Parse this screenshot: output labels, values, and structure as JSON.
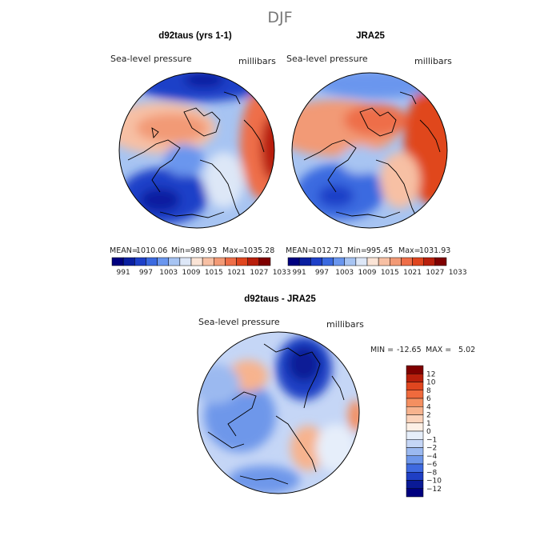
{
  "figure_title": "DJF",
  "chart_data": [
    {
      "type": "heatmap",
      "title": "d92taus (yrs 1-1)",
      "field_label": "Sea-level pressure",
      "units": "millibars",
      "stats": {
        "mean_label": "MEAN=",
        "mean": "1010.06",
        "min_label": "Min=",
        "min": "989.93",
        "max_label": "Max=",
        "max": "1035.28"
      },
      "colorbar": {
        "orientation": "horizontal",
        "levels": [
          "991",
          "997",
          "1003",
          "1009",
          "1015",
          "1021",
          "1027",
          "1033"
        ]
      }
    },
    {
      "type": "heatmap",
      "title": "JRA25",
      "field_label": "Sea-level pressure",
      "units": "millibars",
      "stats": {
        "mean_label": "MEAN=",
        "mean": "1012.71",
        "min_label": "Min=",
        "min": "995.45",
        "max_label": "Max=",
        "max": "1031.93"
      },
      "colorbar": {
        "orientation": "horizontal",
        "levels": [
          "991",
          "997",
          "1003",
          "1009",
          "1015",
          "1021",
          "1027",
          "1033"
        ]
      }
    },
    {
      "type": "heatmap",
      "title": "d92taus - JRA25",
      "field_label": "Sea-level pressure",
      "units": "millibars",
      "stats": {
        "min_label": "MIN =",
        "min": "-12.65",
        "max_label": "MAX =",
        "max": "5.02"
      },
      "colorbar": {
        "orientation": "vertical",
        "levels": [
          "12",
          "10",
          "8",
          "6",
          "4",
          "2",
          "1",
          "0",
          "−1",
          "−2",
          "−4",
          "−6",
          "−8",
          "−10",
          "−12"
        ]
      }
    }
  ],
  "palette": {
    "horizontal": [
      "#00007f",
      "#0a1fa0",
      "#1e40c8",
      "#3b6ae0",
      "#6a96ee",
      "#a7c4f2",
      "#dde7f7",
      "#fbe4d6",
      "#f7c0a4",
      "#f29a76",
      "#ee6e48",
      "#e0461f",
      "#b81f0c",
      "#7f0000"
    ],
    "vertical": [
      "#7f0000",
      "#b81f0c",
      "#e0461f",
      "#ef6a3d",
      "#f48f60",
      "#f7b38e",
      "#fbd3bb",
      "#fdf0e6",
      "#e6eefa",
      "#c5d6f6",
      "#9bb9f0",
      "#6e97ea",
      "#3f6ae0",
      "#1f3fc4",
      "#0a1a96",
      "#00007f"
    ]
  },
  "field_colors": {
    "ocean_mid": "#a7c4f2",
    "low": "#1e40c8",
    "high": "#ee6e48",
    "diff_neutral": "#c5d6f6",
    "diff_low": "#1f3fc4",
    "diff_high": "#f7b38e"
  }
}
